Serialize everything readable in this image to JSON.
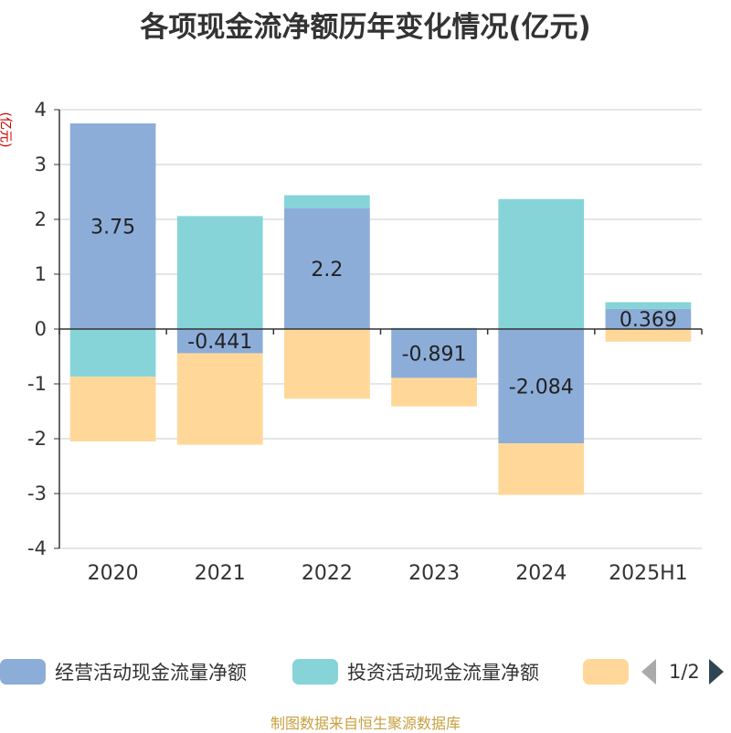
{
  "title": "各项现金流净额历年变化情况(亿元)",
  "unit_label": "(亿元)",
  "source_note": "制图数据来自恒生聚源数据库",
  "legend": {
    "items": [
      {
        "label": "经营活动现金流量净额",
        "color": "#8dadd9"
      },
      {
        "label": "投资活动现金流量净额",
        "color": "#86d4d8"
      },
      {
        "label": "",
        "color": "#ffd899"
      }
    ],
    "page_text": "1/2"
  },
  "colors": {
    "axis": "#333333",
    "grid": "#cccccc",
    "operating": "#8dadd9",
    "investing": "#86d4d8",
    "financing": "#ffd899"
  },
  "chart_data": {
    "type": "bar",
    "stacked": true,
    "categories": [
      "2020",
      "2021",
      "2022",
      "2023",
      "2024",
      "2025H1"
    ],
    "ylim": [
      -4,
      4
    ],
    "yticks": [
      4,
      3,
      2,
      1,
      0,
      -1,
      -2,
      -3,
      -4
    ],
    "grid": true,
    "legend_position": "bottom",
    "series": [
      {
        "name": "经营活动现金流量净额",
        "values": [
          3.75,
          -0.441,
          2.2,
          -0.891,
          -2.084,
          0.369
        ],
        "show_labels": true
      },
      {
        "name": "投资活动现金流量净额",
        "values": [
          -0.87,
          2.06,
          0.24,
          0.02,
          2.37,
          0.12
        ],
        "show_labels": false
      },
      {
        "name": "",
        "values": [
          -1.18,
          -1.67,
          -1.27,
          -0.52,
          -0.94,
          -0.23
        ],
        "show_labels": false
      }
    ],
    "data_labels": [
      "3.75",
      "-0.441",
      "2.2",
      "-0.891",
      "-2.084",
      "0.369"
    ]
  }
}
